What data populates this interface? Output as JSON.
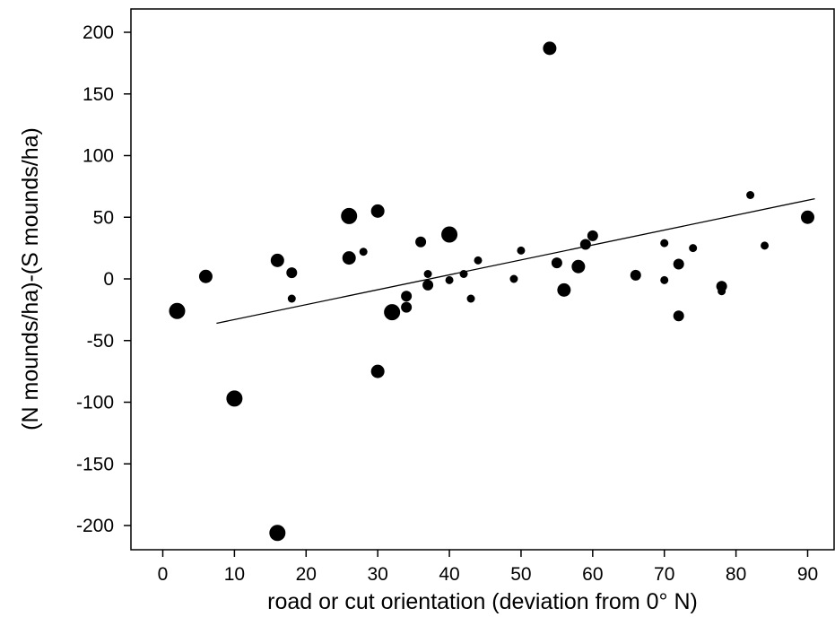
{
  "chart_data": {
    "type": "scatter",
    "title": "",
    "xlabel": "road or cut orientation (deviation from 0° N)",
    "ylabel": "(N mounds/ha)-(S mounds/ha)",
    "xlim": [
      -5,
      95
    ],
    "ylim": [
      -220,
      222
    ],
    "xticks": [
      0,
      10,
      20,
      30,
      40,
      50,
      60,
      70,
      80,
      90
    ],
    "yticks": [
      -200,
      -150,
      -100,
      -50,
      0,
      50,
      100,
      150,
      200
    ],
    "grid": false,
    "legend": "none",
    "marker_color": "#000000",
    "trendline": {
      "x": [
        7.5,
        91
      ],
      "y": [
        -36,
        65
      ]
    },
    "points": [
      {
        "x": 2,
        "y": -26,
        "size": "large"
      },
      {
        "x": 6,
        "y": 2,
        "size": "medium"
      },
      {
        "x": 10,
        "y": -97,
        "size": "large"
      },
      {
        "x": 16,
        "y": 15,
        "size": "medium"
      },
      {
        "x": 16,
        "y": -206,
        "size": "large"
      },
      {
        "x": 18,
        "y": 5,
        "size": "small"
      },
      {
        "x": 18,
        "y": -16,
        "size": "tiny"
      },
      {
        "x": 26,
        "y": 51,
        "size": "large"
      },
      {
        "x": 26,
        "y": 17,
        "size": "medium"
      },
      {
        "x": 28,
        "y": 22,
        "size": "tiny"
      },
      {
        "x": 30,
        "y": 55,
        "size": "medium"
      },
      {
        "x": 30,
        "y": -75,
        "size": "medium"
      },
      {
        "x": 32,
        "y": -27,
        "size": "large"
      },
      {
        "x": 34,
        "y": -14,
        "size": "small"
      },
      {
        "x": 34,
        "y": -23,
        "size": "small"
      },
      {
        "x": 36,
        "y": 30,
        "size": "small"
      },
      {
        "x": 37,
        "y": 4,
        "size": "tiny"
      },
      {
        "x": 37,
        "y": -5,
        "size": "small"
      },
      {
        "x": 40,
        "y": 36,
        "size": "large"
      },
      {
        "x": 40,
        "y": -1,
        "size": "tiny"
      },
      {
        "x": 42,
        "y": 4,
        "size": "tiny"
      },
      {
        "x": 43,
        "y": -16,
        "size": "tiny"
      },
      {
        "x": 44,
        "y": 15,
        "size": "tiny"
      },
      {
        "x": 49,
        "y": 0,
        "size": "tiny"
      },
      {
        "x": 50,
        "y": 23,
        "size": "tiny"
      },
      {
        "x": 54,
        "y": 187,
        "size": "medium"
      },
      {
        "x": 55,
        "y": 13,
        "size": "small"
      },
      {
        "x": 56,
        "y": -9,
        "size": "medium"
      },
      {
        "x": 58,
        "y": 10,
        "size": "medium"
      },
      {
        "x": 59,
        "y": 28,
        "size": "small"
      },
      {
        "x": 60,
        "y": 35,
        "size": "small"
      },
      {
        "x": 66,
        "y": 3,
        "size": "small"
      },
      {
        "x": 70,
        "y": 29,
        "size": "tiny"
      },
      {
        "x": 70,
        "y": -1,
        "size": "tiny"
      },
      {
        "x": 72,
        "y": 12,
        "size": "small"
      },
      {
        "x": 72,
        "y": -30,
        "size": "small"
      },
      {
        "x": 74,
        "y": 25,
        "size": "tiny"
      },
      {
        "x": 78,
        "y": -6,
        "size": "small"
      },
      {
        "x": 78,
        "y": -10,
        "size": "tiny"
      },
      {
        "x": 82,
        "y": 68,
        "size": "tiny"
      },
      {
        "x": 84,
        "y": 27,
        "size": "tiny"
      },
      {
        "x": 90,
        "y": 50,
        "size": "medium"
      }
    ]
  }
}
